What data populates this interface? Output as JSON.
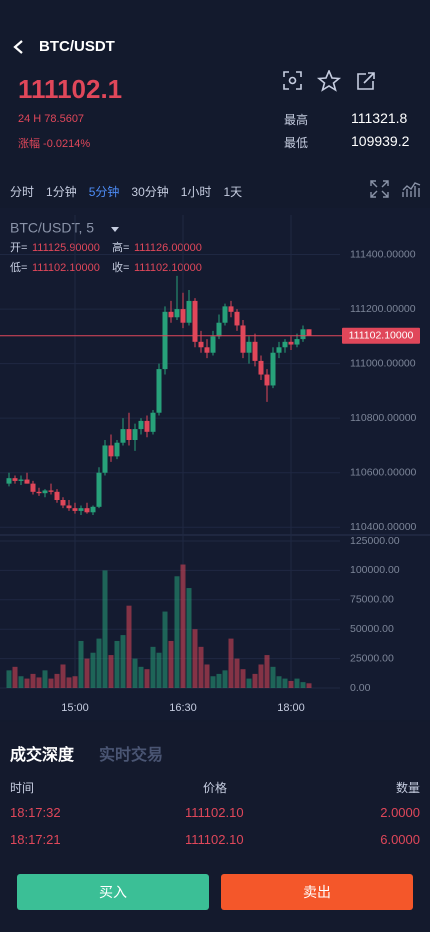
{
  "header": {
    "symbol": "BTC/USDT",
    "price": "111102.1",
    "volume_24h": "24 H 78.5607",
    "change": "涨幅 -0.0214%",
    "high_label": "最高",
    "high": "111321.8",
    "low_label": "最低",
    "low": "109939.2"
  },
  "tabs": [
    "分时",
    "1分钟",
    "5分钟",
    "30分钟",
    "1小时",
    "1天"
  ],
  "active_tab": 2,
  "chart_data": {
    "type": "candlestick",
    "title": "BTC/USDT, 5",
    "ohlc_info": [
      {
        "label": "开=",
        "value": "111125.90000"
      },
      {
        "label": "高=",
        "value": "111126.00000"
      },
      {
        "label": "低=",
        "value": "111102.10000"
      },
      {
        "label": "收=",
        "value": "111102.10000"
      }
    ],
    "up_color": "#27a17a",
    "down_color": "#e0475a",
    "grid": true,
    "categories": [
      null,
      null,
      null,
      null,
      null,
      null,
      null,
      null,
      null,
      null,
      null,
      "15:00",
      null,
      null,
      null,
      null,
      null,
      null,
      null,
      null,
      null,
      null,
      null,
      null,
      null,
      null,
      null,
      null,
      null,
      "16:30",
      null,
      null,
      null,
      null,
      null,
      null,
      null,
      null,
      null,
      null,
      null,
      null,
      null,
      null,
      null,
      null,
      null,
      "18:00",
      null,
      null,
      null
    ],
    "open": [
      110560,
      110580,
      110570,
      110575,
      110560,
      110530,
      110525,
      110535,
      110530,
      110500,
      110480,
      110470,
      110460,
      110470,
      110455,
      110475,
      110600,
      110700,
      110660,
      110710,
      110760,
      110720,
      110760,
      110790,
      110750,
      110820,
      110980,
      111190,
      111170,
      111200,
      111150,
      111230,
      111080,
      111060,
      111040,
      111100,
      111150,
      111210,
      111190,
      111140,
      111040,
      111080,
      111010,
      110960,
      110920,
      111040,
      111060,
      111080,
      111070,
      111090,
      111125.9
    ],
    "high": [
      110600,
      110590,
      110590,
      110600,
      110570,
      110545,
      110540,
      110560,
      110540,
      110510,
      110500,
      110490,
      110480,
      110490,
      110480,
      110620,
      110720,
      110740,
      110720,
      110800,
      110820,
      110780,
      110800,
      110810,
      110830,
      111000,
      111210,
      111230,
      111321.8,
      111260,
      111270,
      111240,
      111120,
      111090,
      111120,
      111180,
      111220,
      111230,
      111200,
      111160,
      111100,
      111110,
      111030,
      110980,
      111060,
      111080,
      111090,
      111100,
      111110,
      111140,
      111126
    ],
    "low": [
      110550,
      110560,
      110555,
      110560,
      110520,
      110515,
      110510,
      110520,
      110490,
      110470,
      110460,
      110450,
      110445,
      110450,
      110445,
      110470,
      110590,
      110640,
      110650,
      110700,
      110700,
      110680,
      110740,
      110730,
      110740,
      110810,
      110960,
      111150,
      111160,
      111130,
      111140,
      111060,
      111040,
      111020,
      111030,
      111090,
      111140,
      111170,
      111120,
      111020,
      111000,
      110990,
      110940,
      110860,
      110910,
      111020,
      111040,
      111050,
      111060,
      111080,
      111102.1
    ],
    "close": [
      110580,
      110570,
      110575,
      110560,
      110530,
      110525,
      110535,
      110530,
      110500,
      110480,
      110470,
      110460,
      110470,
      110455,
      110475,
      110600,
      110700,
      110660,
      110710,
      110760,
      110720,
      110760,
      110790,
      110750,
      110820,
      110980,
      111190,
      111170,
      111200,
      111150,
      111230,
      111080,
      111060,
      111040,
      111100,
      111150,
      111210,
      111190,
      111140,
      111040,
      111080,
      111010,
      110960,
      110920,
      111040,
      111060,
      111080,
      111070,
      111090,
      111125.9,
      111102.1
    ],
    "volume": [
      15000,
      18000,
      10000,
      8000,
      12000,
      9000,
      15000,
      8000,
      12000,
      20000,
      9000,
      10000,
      40000,
      25000,
      30000,
      42000,
      100000,
      28000,
      40000,
      45000,
      70000,
      25000,
      18000,
      16000,
      35000,
      30000,
      65000,
      40000,
      95000,
      105000,
      85000,
      50000,
      35000,
      20000,
      10000,
      12000,
      15000,
      42000,
      25000,
      16000,
      8000,
      12000,
      20000,
      28000,
      18000,
      10000,
      8000,
      6000,
      8000,
      5000,
      4000
    ],
    "ylim": [
      110390,
      111545
    ],
    "yticks": [
      {
        "value": 110400,
        "label": "110400.00000"
      },
      {
        "value": 110600,
        "label": "110600.00000"
      },
      {
        "value": 110800,
        "label": "110800.00000"
      },
      {
        "value": 111000,
        "label": "111000.00000"
      },
      {
        "value": 111200,
        "label": "111200.00000"
      },
      {
        "value": 111400,
        "label": "111400.00000"
      }
    ],
    "last_price": {
      "value": 111102.1,
      "label": "111102.10000"
    },
    "volume_ylim": [
      0,
      125000
    ],
    "volume_ticks": [
      {
        "value": 0,
        "label": "0.00"
      },
      {
        "value": 25000,
        "label": "25000.00"
      },
      {
        "value": 50000,
        "label": "50000.00"
      },
      {
        "value": 75000,
        "label": "75000.00"
      },
      {
        "value": 100000,
        "label": "100000.00"
      },
      {
        "value": 125000,
        "label": "125000.00"
      }
    ]
  },
  "trade_tabs": [
    "成交深度",
    "实时交易"
  ],
  "trades": {
    "columns": [
      "时间",
      "价格",
      "数量"
    ],
    "rows": [
      [
        "18:17:32",
        "111102.10",
        "2.0000"
      ],
      [
        "18:17:21",
        "111102.10",
        "6.0000"
      ]
    ]
  },
  "buttons": {
    "buy": "买入",
    "sell": "卖出"
  }
}
